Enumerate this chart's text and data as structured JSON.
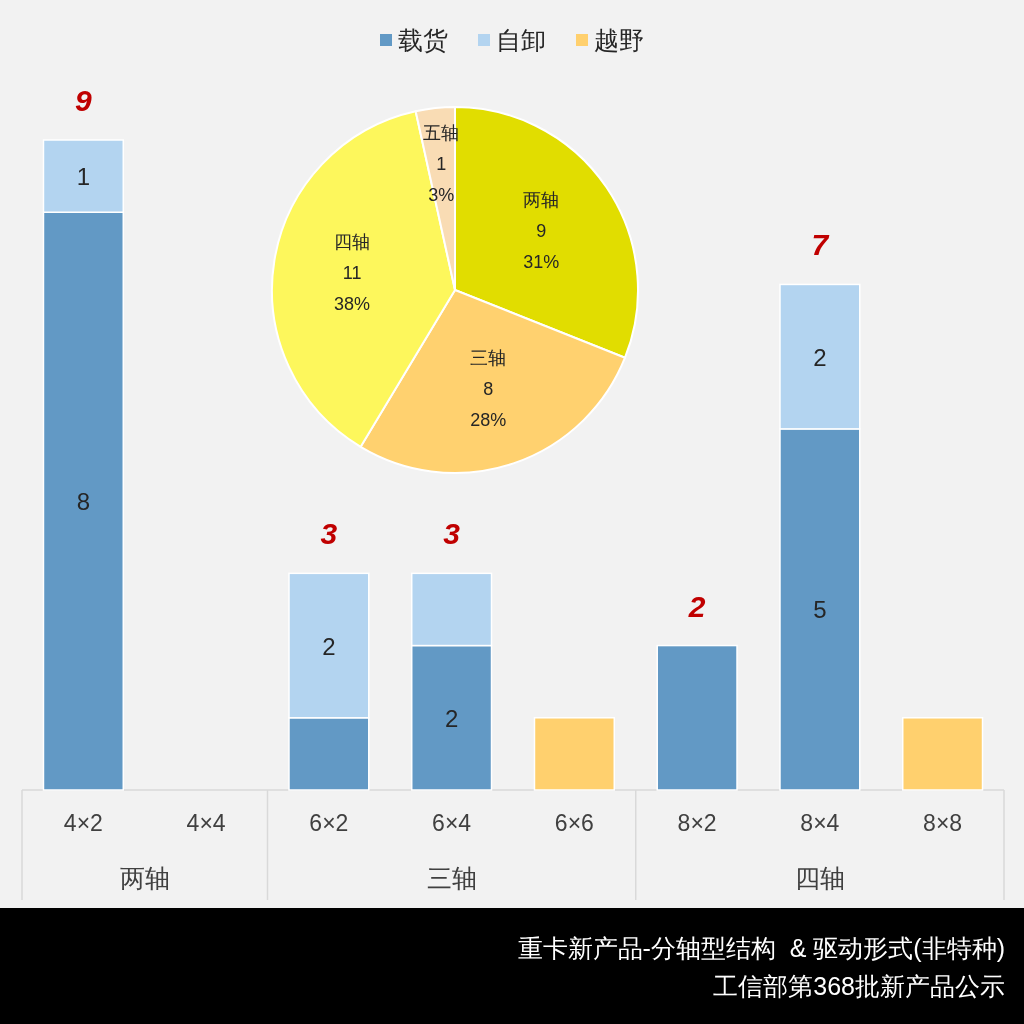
{
  "chart_data": [
    {
      "type": "bar",
      "stacked": true,
      "title": "重卡新产品-分轴型结构  & 驱动形式(非特种)",
      "subtitle": "工信部第368批新产品公示",
      "categories": [
        "4×2",
        "4×4",
        "6×2",
        "6×4",
        "6×6",
        "8×2",
        "8×4",
        "8×8"
      ],
      "series": [
        {
          "name": "载货",
          "color": "#6299c5",
          "values": [
            8,
            null,
            1,
            2,
            null,
            2,
            5,
            null
          ],
          "value_labels": [
            "8",
            null,
            null,
            "2",
            null,
            null,
            "5",
            null
          ]
        },
        {
          "name": "自卸",
          "color": "#b3d4f0",
          "values": [
            1,
            null,
            2,
            1,
            null,
            null,
            2,
            null
          ],
          "value_labels": [
            "1",
            null,
            "2",
            null,
            null,
            null,
            "2",
            null
          ]
        },
        {
          "name": "越野",
          "color": "#ffd06e",
          "values": [
            null,
            null,
            null,
            null,
            1,
            null,
            null,
            1
          ]
        }
      ],
      "totals": [
        "9",
        null,
        "3",
        "3",
        null,
        "2",
        "7",
        null
      ],
      "legend": "top",
      "annotations": [
        "两轴",
        "三轴",
        "四轴"
      ]
    },
    {
      "type": "pie",
      "categories": [
        "两轴",
        "三轴",
        "四轴",
        "五轴"
      ],
      "values": [
        9,
        8,
        11,
        1
      ],
      "colors": [
        "#e1dd00",
        "#ffd16f",
        "#fdf75c",
        "#f9dcb4"
      ],
      "data_labels": true,
      "annotations": [
        {
          "text": "31%",
          "x": "两轴"
        },
        {
          "text": "28%",
          "x": "三轴"
        },
        {
          "text": "38%",
          "x": "四轴"
        },
        {
          "text": "3%",
          "x": "五轴"
        }
      ]
    }
  ]
}
